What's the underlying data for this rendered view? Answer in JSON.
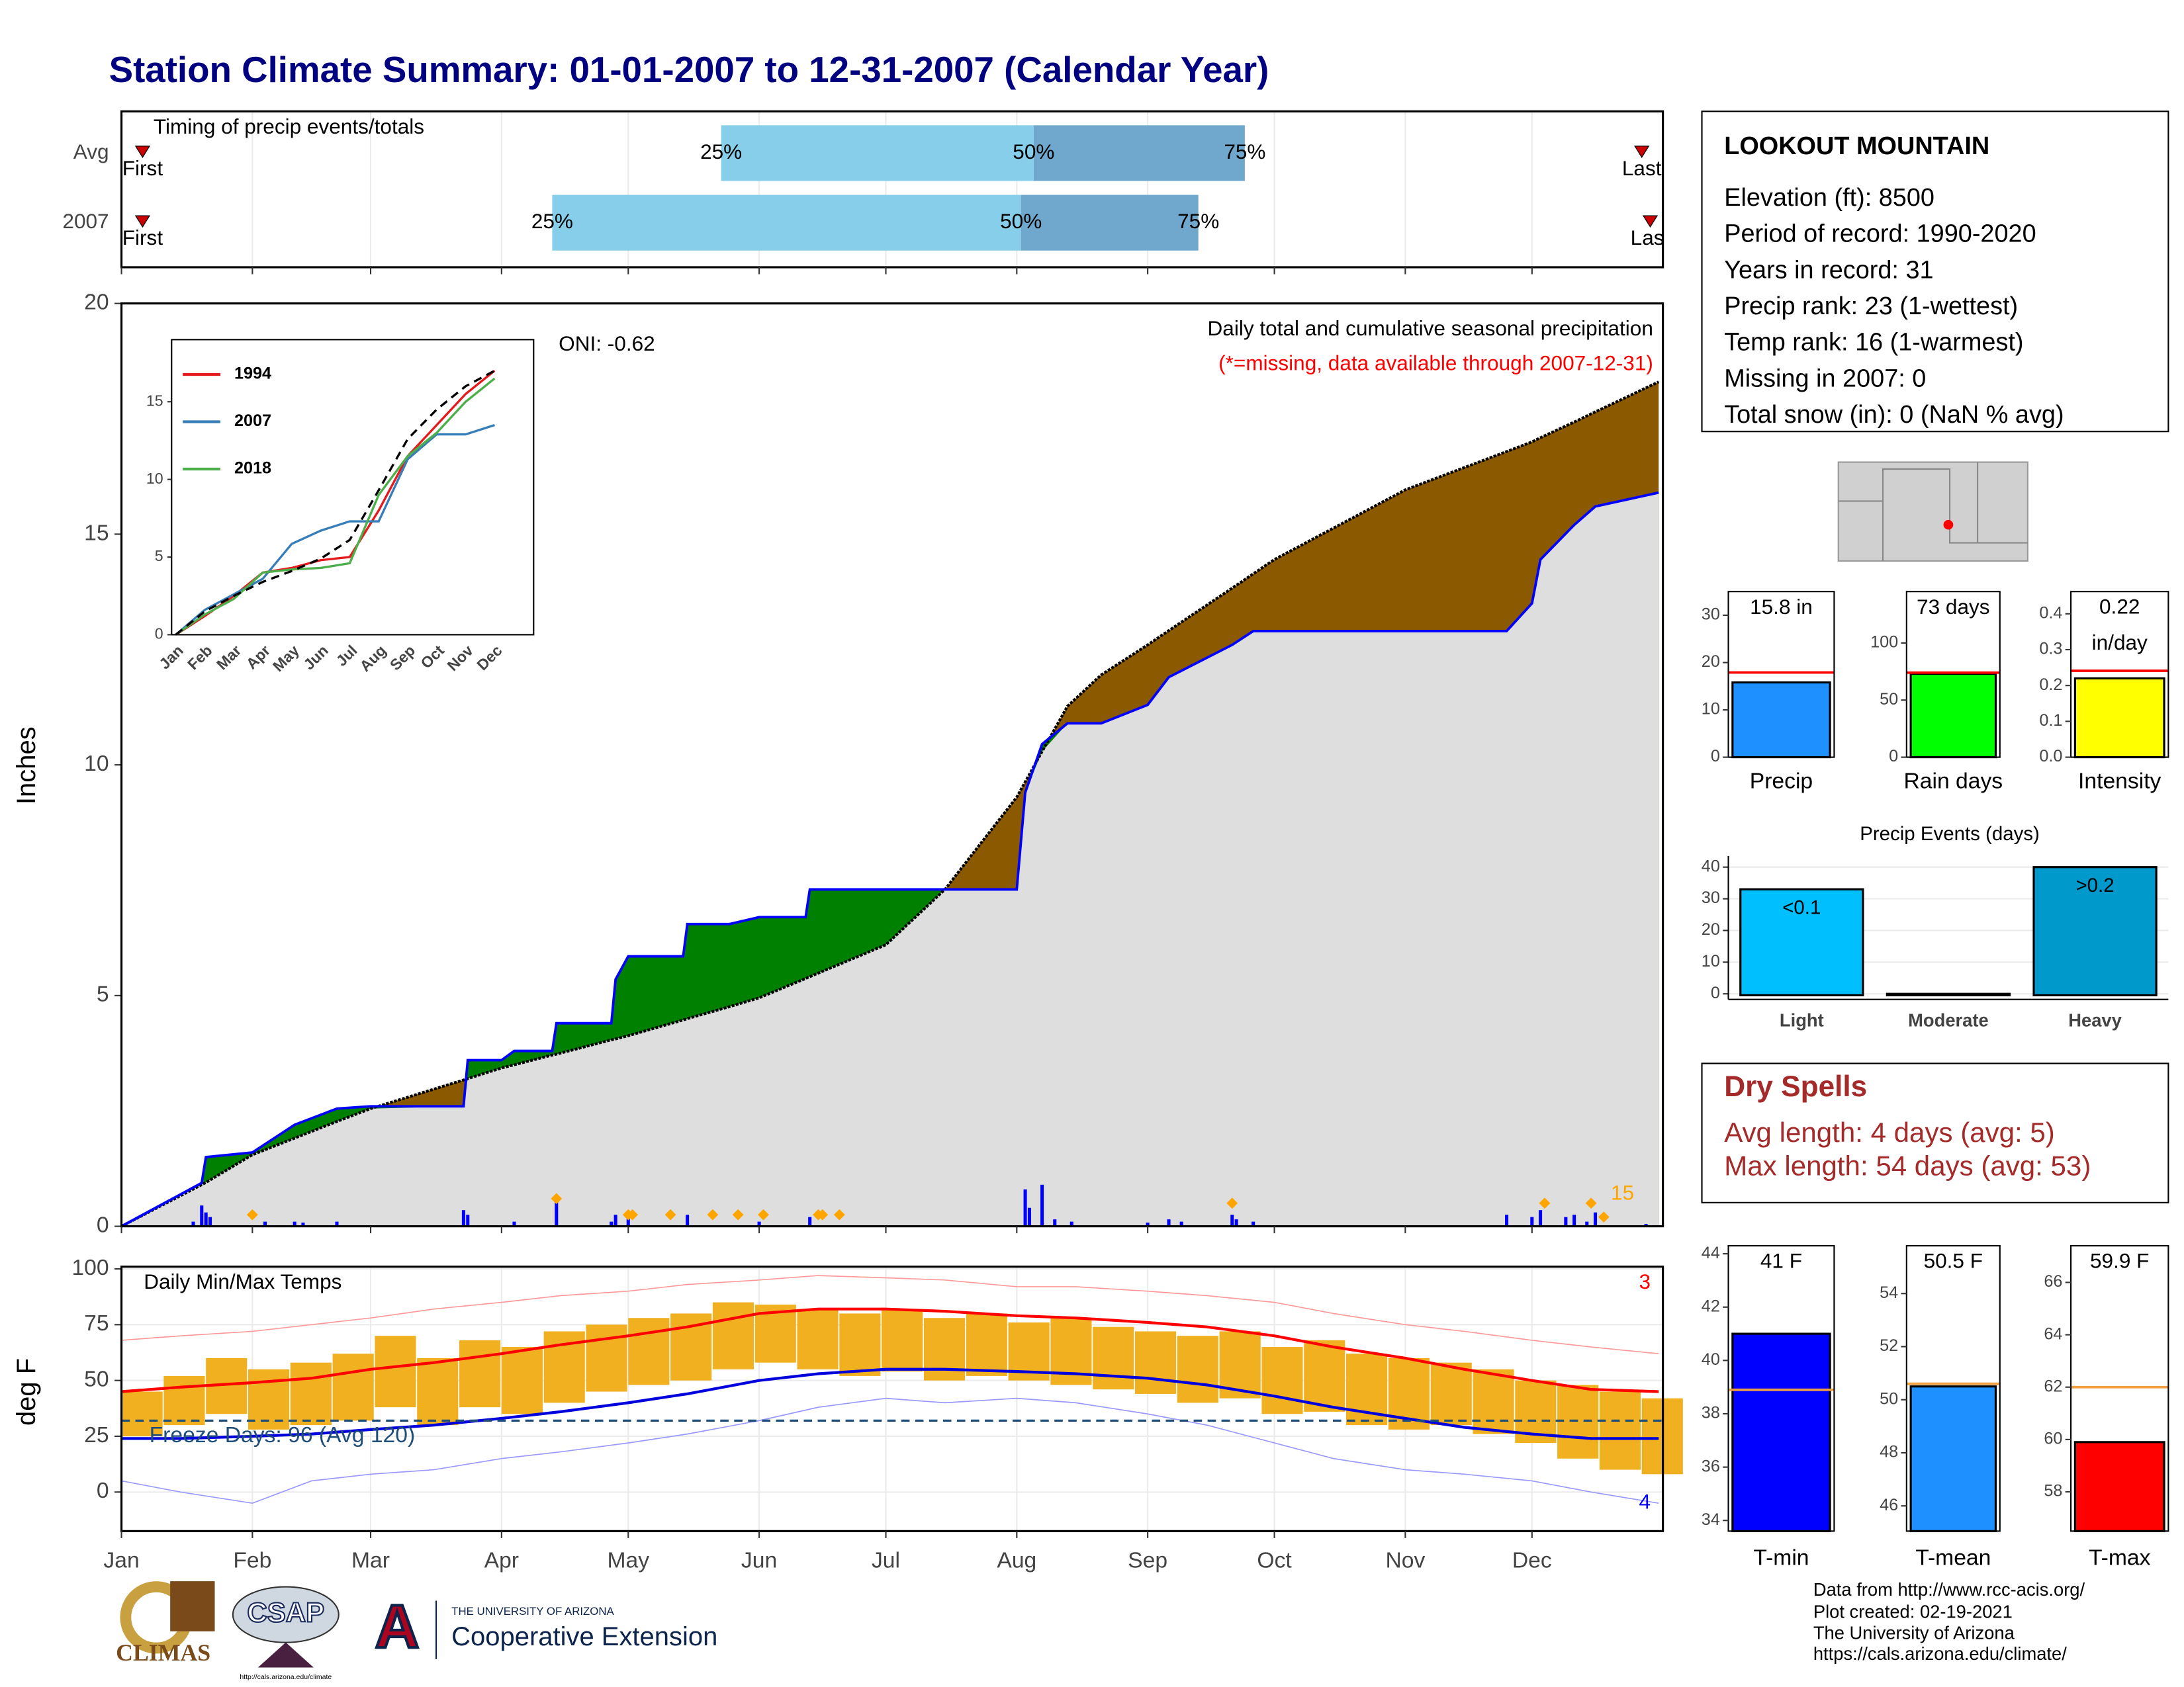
{
  "title": "Station Climate Summary: 01-01-2007 to 12-31-2007 (Calendar Year)",
  "station": {
    "name": "LOOKOUT MOUNTAIN",
    "lines": [
      "Elevation (ft): 8500",
      "Period of record: 1990-2020",
      "Years in record: 31",
      "Precip rank: 23 (1-wettest)",
      "Temp rank: 16 (1-warmest)",
      "Missing in 2007: 0",
      "Total snow (in): 0 (NaN % avg)"
    ]
  },
  "dry_spells": {
    "title": "Dry Spells",
    "lines": [
      "Avg length: 4 days (avg: 5)",
      "Max length: 54 days (avg: 53)"
    ]
  },
  "credits": [
    "Data from http://www.rcc-acis.org/",
    "Plot created: 02-19-2021",
    "The University of Arizona",
    "https://cals.arizona.edu/climate/"
  ],
  "logos": {
    "climas": "CLIMAS",
    "csap": "CSAP",
    "csap_url": "http://cals.arizona.edu/climate",
    "ua": "THE UNIVERSITY OF ARIZONA",
    "coop": "Cooperative Extension"
  },
  "chart_data": [
    {
      "type": "timing",
      "title": "Timing of precip events/totals",
      "categories": [
        "Avg",
        "2007"
      ],
      "first": [
        6,
        6
      ],
      "last": [
        361,
        363
      ],
      "q25": [
        143,
        103
      ],
      "q50": [
        217,
        214
      ],
      "q75": [
        267,
        256
      ],
      "labels": {
        "first": "First",
        "last": "Last",
        "q25": "25%",
        "q50": "50%",
        "q75": "75%"
      },
      "colors": [
        "#87ceeb",
        "#6fa8cc"
      ],
      "marker_color": "#cc0000"
    },
    {
      "type": "cumulative",
      "title": "Daily total and cumulative seasonal precipitation",
      "subtitle": "(*=missing, data available through 2007-12-31)",
      "annotation": "ONI: -0.62",
      "ylabel": "Inches",
      "ylim": [
        0,
        20
      ],
      "yticks": [
        0,
        5,
        10,
        15,
        20
      ],
      "x": [
        1,
        20,
        21,
        32,
        42,
        52,
        60,
        82,
        83,
        91,
        94,
        103,
        104,
        117,
        118,
        121,
        134,
        135,
        145,
        152,
        163,
        164,
        182,
        196,
        201,
        213,
        215,
        219,
        225,
        233,
        244,
        249,
        264,
        269,
        274,
        305,
        329,
        335,
        337,
        345,
        350,
        365
      ],
      "series": [
        {
          "color": "#000000",
          "values": [
            0,
            0.9,
            0.95,
            1.55,
            1.91,
            2.27,
            2.55,
            3.17,
            3.2,
            3.43,
            3.5,
            3.71,
            3.73,
            4.04,
            4.06,
            4.13,
            4.47,
            4.5,
            4.76,
            4.95,
            5.37,
            5.41,
            6.1,
            7.3,
            7.89,
            9.3,
            9.63,
            10.29,
            11.27,
            11.95,
            12.6,
            12.91,
            13.83,
            14.14,
            14.45,
            15.96,
            16.79,
            17.0,
            17.09,
            17.43,
            17.65,
            18.3
          ]
        },
        {
          "color": "#0000ff",
          "values": [
            0,
            0.94,
            1.5,
            1.6,
            2.2,
            2.55,
            2.6,
            2.6,
            3.6,
            3.6,
            3.8,
            3.8,
            4.4,
            4.4,
            5.35,
            5.85,
            5.85,
            6.55,
            6.55,
            6.7,
            6.7,
            7.3,
            7.3,
            7.3,
            7.3,
            7.3,
            9.4,
            10.45,
            10.9,
            10.9,
            11.3,
            11.9,
            12.6,
            12.9,
            12.9,
            12.9,
            12.9,
            13.5,
            14.45,
            15.2,
            15.6,
            15.9
          ]
        }
      ],
      "above_color": "#008000",
      "below_color": "#8b5a00",
      "fill_color": "#dedede",
      "daily": {
        "color": "#0000ff",
        "x": [
          18,
          20,
          21,
          22,
          35,
          42,
          44,
          52,
          82,
          83,
          94,
          104,
          117,
          118,
          121,
          135,
          152,
          164,
          215,
          216,
          219,
          222,
          226,
          244,
          249,
          252,
          264,
          265,
          269,
          329,
          335,
          337,
          343,
          345,
          348,
          350,
          362
        ],
        "values": [
          0.1,
          0.45,
          0.3,
          0.2,
          0.1,
          0.1,
          0.08,
          0.1,
          0.35,
          0.25,
          0.1,
          0.6,
          0.1,
          0.25,
          0.3,
          0.25,
          0.1,
          0.2,
          0.8,
          0.4,
          0.9,
          0.15,
          0.1,
          0.08,
          0.15,
          0.1,
          0.25,
          0.15,
          0.1,
          0.25,
          0.2,
          0.35,
          0.2,
          0.25,
          0.1,
          0.3,
          0.05
        ]
      },
      "events": {
        "color": "#ffa500",
        "x": [
          32,
          104,
          121,
          122,
          131,
          141,
          147,
          153,
          166,
          167,
          171,
          264,
          338,
          349,
          352
        ],
        "values": [
          0.25,
          0.6,
          0.25,
          0.25,
          0.25,
          0.25,
          0.25,
          0.25,
          0.25,
          0.25,
          0.25,
          0.5,
          0.5,
          0.5,
          0.2
        ]
      },
      "event_count": 15
    },
    {
      "type": "line",
      "categories": [
        "Jan",
        "Feb",
        "Mar",
        "Apr",
        "May",
        "Jun",
        "Jul",
        "Aug",
        "Sep",
        "Oct",
        "Nov",
        "Dec"
      ],
      "ylim": [
        0,
        19
      ],
      "yticks": [
        0,
        5,
        10,
        15
      ],
      "series": [
        {
          "name": "1994",
          "color": "#e41a1c",
          "values": [
            0,
            1.2,
            2.5,
            4.0,
            4.3,
            4.8,
            5.0,
            8.0,
            11.5,
            13.5,
            15.5,
            17.0
          ]
        },
        {
          "name": "2007",
          "color": "#377eb8",
          "values": [
            0,
            1.6,
            2.6,
            3.6,
            5.85,
            6.7,
            7.3,
            7.3,
            11.3,
            12.9,
            12.9,
            13.5
          ]
        },
        {
          "name": "2018",
          "color": "#4daf4a",
          "values": [
            0,
            1.3,
            2.3,
            4.0,
            4.2,
            4.3,
            4.6,
            9.0,
            11.5,
            13.0,
            15.0,
            16.5
          ]
        },
        {
          "color": "#000000",
          "dash": true,
          "values": [
            0,
            1.5,
            2.5,
            3.4,
            4.1,
            4.9,
            6.1,
            9.3,
            12.6,
            14.5,
            16.0,
            17.0
          ]
        }
      ]
    },
    {
      "type": "temps",
      "title": "Daily Min/Max Temps",
      "ylabel": "deg F",
      "ylim": [
        -17.5,
        101
      ],
      "yticks": [
        0,
        25,
        50,
        75,
        100
      ],
      "xlim": [
        1,
        366
      ],
      "xticks": [
        {
          "value": 1,
          "label": "Jan"
        },
        {
          "value": 32,
          "label": "Feb"
        },
        {
          "value": 60,
          "label": "Mar"
        },
        {
          "value": 91,
          "label": "Apr"
        },
        {
          "value": 121,
          "label": "May"
        },
        {
          "value": 152,
          "label": "Jun"
        },
        {
          "value": 182,
          "label": "Jul"
        },
        {
          "value": 213,
          "label": "Aug"
        },
        {
          "value": 244,
          "label": "Sep"
        },
        {
          "value": 274,
          "label": "Oct"
        },
        {
          "value": 305,
          "label": "Nov"
        },
        {
          "value": 335,
          "label": "Dec"
        }
      ],
      "x": [
        1,
        15,
        32,
        46,
        60,
        75,
        91,
        105,
        121,
        135,
        152,
        166,
        182,
        196,
        213,
        227,
        244,
        258,
        274,
        288,
        305,
        319,
        335,
        349,
        365
      ],
      "series": [
        {
          "color": "#ff9999",
          "width": 0.8,
          "values": [
            68,
            70,
            72,
            75,
            78,
            82,
            85,
            88,
            90,
            93,
            95,
            97,
            96,
            95,
            92,
            92,
            90,
            88,
            85,
            80,
            75,
            72,
            68,
            65,
            62
          ]
        },
        {
          "color": "#9999ff",
          "width": 0.8,
          "values": [
            5,
            0,
            -5,
            5,
            8,
            10,
            15,
            18,
            22,
            26,
            32,
            38,
            42,
            40,
            42,
            40,
            35,
            30,
            22,
            15,
            10,
            8,
            5,
            0,
            -5
          ]
        },
        {
          "color": "#ff0000",
          "width": 2,
          "values": [
            45,
            47,
            49,
            51,
            55,
            58,
            62,
            66,
            70,
            74,
            80,
            82,
            82,
            81,
            79,
            78,
            76,
            74,
            70,
            65,
            60,
            55,
            50,
            46,
            45
          ]
        },
        {
          "color": "#0000dd",
          "width": 2,
          "values": [
            24,
            24,
            25,
            26,
            28,
            30,
            33,
            36,
            40,
            44,
            50,
            53,
            55,
            55,
            54,
            53,
            51,
            48,
            43,
            38,
            33,
            29,
            26,
            24,
            24
          ]
        }
      ],
      "obs": {
        "color": "#f0b020",
        "span": 10,
        "x": [
          1,
          11,
          21,
          31,
          41,
          51,
          61,
          71,
          81,
          91,
          101,
          111,
          121,
          131,
          141,
          151,
          161,
          171,
          181,
          191,
          201,
          211,
          221,
          231,
          241,
          251,
          261,
          271,
          281,
          291,
          301,
          311,
          321,
          331,
          341,
          351,
          361
        ],
        "max": [
          45,
          52,
          60,
          55,
          58,
          62,
          70,
          60,
          68,
          65,
          72,
          75,
          78,
          80,
          85,
          84,
          82,
          80,
          82,
          78,
          80,
          76,
          78,
          74,
          72,
          70,
          72,
          65,
          68,
          62,
          60,
          58,
          55,
          50,
          48,
          45,
          42
        ],
        "min": [
          25,
          30,
          35,
          28,
          30,
          32,
          38,
          30,
          38,
          35,
          40,
          45,
          48,
          50,
          55,
          58,
          55,
          52,
          54,
          50,
          52,
          50,
          48,
          46,
          44,
          40,
          42,
          35,
          36,
          30,
          28,
          30,
          26,
          22,
          15,
          10,
          8
        ]
      },
      "freeze_line": 32,
      "freeze_label": "Freeze Days: 96 (Avg 120)",
      "record_high_count": 3,
      "record_low_count": 4
    },
    {
      "type": "summary-bar",
      "xlabel": "Precip",
      "value": 15.8,
      "value_label": "15.8 in",
      "avg": 17.9,
      "ylim": [
        0,
        35
      ],
      "yticks": [
        0,
        10,
        20,
        30
      ],
      "color": "#1e90ff",
      "avg_color": "#ff0000"
    },
    {
      "type": "summary-bar",
      "xlabel": "Rain days",
      "value": 73,
      "value_label": "73 days",
      "avg": 74,
      "ylim": [
        0,
        145
      ],
      "yticks": [
        0,
        50,
        100
      ],
      "color": "#00ff00",
      "avg_color": "#ff0000"
    },
    {
      "type": "summary-bar",
      "xlabel": "Intensity",
      "value": 0.22,
      "value_label": "0.22 in/day",
      "avg": 0.241,
      "ylim": [
        0,
        0.462
      ],
      "yticks": [
        {
          "value": 0,
          "label": "0.0"
        },
        0.1,
        0.2,
        0.3,
        0.4
      ],
      "color": "#ffff00",
      "avg_color": "#ff0000"
    },
    {
      "type": "bar",
      "title": "Precip Events (days)",
      "categories": [
        "Light",
        "Moderate",
        "Heavy"
      ],
      "values": [
        33,
        0,
        40
      ],
      "bar_labels": [
        "<0.1",
        null,
        ">0.2"
      ],
      "colors": [
        "#00bfff",
        "#1e8bc3",
        "#0099cc"
      ],
      "ylim": [
        0,
        43.5
      ],
      "yticks": [
        0,
        10,
        20,
        30,
        40
      ],
      "grid": true
    },
    {
      "type": "summary-bar",
      "xlabel": "T-min",
      "value": 41,
      "value_label": "41 F",
      "avg": 38.9,
      "ylim": [
        33.6,
        44.3
      ],
      "yticks": [
        34,
        36,
        38,
        40,
        42,
        44
      ],
      "color": "#0000ff",
      "avg_color": "#f0a040"
    },
    {
      "type": "summary-bar",
      "xlabel": "T-mean",
      "value": 50.5,
      "value_label": "50.5 F",
      "avg": 50.6,
      "ylim": [
        45.05,
        55.8
      ],
      "yticks": [
        46,
        48,
        50,
        52,
        54
      ],
      "color": "#1e90ff",
      "avg_color": "#f0a040"
    },
    {
      "type": "summary-bar",
      "xlabel": "T-max",
      "value": 59.9,
      "value_label": "59.9 F",
      "avg": 62,
      "ylim": [
        56.5,
        67.4
      ],
      "yticks": [
        58,
        60,
        62,
        64,
        66
      ],
      "color": "#ff0000",
      "avg_color": "#f0a040"
    }
  ]
}
